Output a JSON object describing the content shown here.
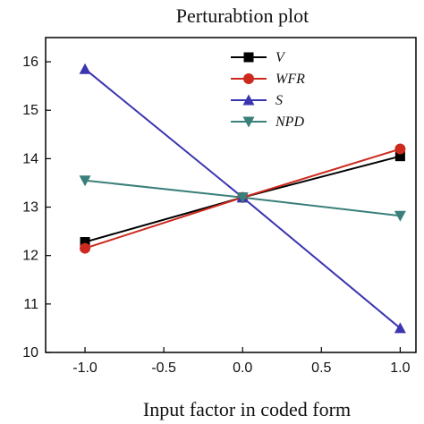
{
  "chart_data": {
    "type": "line",
    "title": "Perturabtion plot",
    "xlabel": "Input factor in coded form",
    "ylabel": "",
    "x": [
      -1.0,
      0.0,
      1.0
    ],
    "xlim": [
      -1.25,
      1.1
    ],
    "ylim": [
      10,
      16.5
    ],
    "xticks": [
      "-1.0",
      "-0.5",
      "0.0",
      "0.5",
      "1.0"
    ],
    "yticks": [
      "10",
      "11",
      "12",
      "13",
      "14",
      "15",
      "16"
    ],
    "grid": false,
    "legend_position": "top-right",
    "series": [
      {
        "name": "V",
        "values": [
          12.28,
          13.2,
          14.05
        ],
        "color": "#000000",
        "marker": "square"
      },
      {
        "name": "WFR",
        "values": [
          12.15,
          13.2,
          14.2
        ],
        "color": "#cc2a1e",
        "marker": "circle"
      },
      {
        "name": "S",
        "values": [
          15.85,
          13.2,
          10.5
        ],
        "color": "#3b35b0",
        "marker": "triangle-up"
      },
      {
        "name": "NPD",
        "values": [
          13.55,
          13.2,
          12.82
        ],
        "color": "#3a7f7a",
        "marker": "triangle-down"
      }
    ]
  }
}
